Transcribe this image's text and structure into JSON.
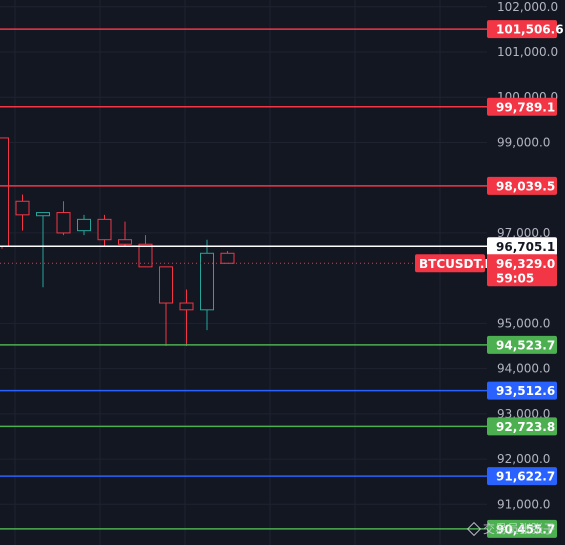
{
  "chart_data": {
    "type": "candlestick",
    "symbol_label": "BTCUSDT.P",
    "countdown": "59:05",
    "last_price": 96329.0,
    "last_price_label": "96,329.0",
    "ylim": [
      90100,
      102150
    ],
    "y_ticks": [
      {
        "v": 102000,
        "label": "102,000.0"
      },
      {
        "v": 101000,
        "label": "101,000.0"
      },
      {
        "v": 100000,
        "label": "100,000.0"
      },
      {
        "v": 99000,
        "label": "99,000.0"
      },
      {
        "v": 97000,
        "label": "97,000.0"
      },
      {
        "v": 95000,
        "label": "95,000.0"
      },
      {
        "v": 94000,
        "label": "94,000.0"
      },
      {
        "v": 93000,
        "label": "93,000.0"
      },
      {
        "v": 92000,
        "label": "92,000.0"
      },
      {
        "v": 91000,
        "label": "91,000.0"
      }
    ],
    "levels": [
      {
        "v": 101506.6,
        "label": "101,506.6",
        "color": "#f23645"
      },
      {
        "v": 99789.1,
        "label": "99,789.1",
        "color": "#f23645"
      },
      {
        "v": 98039.5,
        "label": "98,039.5",
        "color": "#f23645"
      },
      {
        "v": 96705.1,
        "label": "96,705.1",
        "color": "#ffffff"
      },
      {
        "v": 94523.7,
        "label": "94,523.7",
        "color": "#4caf50"
      },
      {
        "v": 93512.6,
        "label": "93,512.6",
        "color": "#2962ff"
      },
      {
        "v": 92723.8,
        "label": "92,723.8",
        "color": "#4caf50"
      },
      {
        "v": 91622.7,
        "label": "91,622.7",
        "color": "#2962ff"
      },
      {
        "v": 90455.7,
        "label": "90,455.7",
        "color": "#4caf50"
      }
    ],
    "candles": [
      {
        "o": 99100,
        "h": 99100,
        "l": 96650,
        "c": 96700
      },
      {
        "o": 97700,
        "h": 97850,
        "l": 97050,
        "c": 97400
      },
      {
        "o": 97380,
        "h": 97450,
        "l": 95800,
        "c": 97450
      },
      {
        "o": 97450,
        "h": 97700,
        "l": 96950,
        "c": 97000
      },
      {
        "o": 97050,
        "h": 97400,
        "l": 96950,
        "c": 97300
      },
      {
        "o": 97300,
        "h": 97400,
        "l": 96700,
        "c": 96850
      },
      {
        "o": 96850,
        "h": 97250,
        "l": 96700,
        "c": 96750
      },
      {
        "o": 96750,
        "h": 96950,
        "l": 96250,
        "c": 96250
      },
      {
        "o": 96250,
        "h": 96250,
        "l": 94500,
        "c": 95450
      },
      {
        "o": 95450,
        "h": 95750,
        "l": 94500,
        "c": 95300
      },
      {
        "o": 95300,
        "h": 96850,
        "l": 94850,
        "c": 96550
      },
      {
        "o": 96550,
        "h": 96600,
        "l": 96329,
        "c": 96329
      }
    ],
    "colors": {
      "up": "#26a69a",
      "down": "#f23645",
      "background": "#131722",
      "grid": "#1f2330"
    },
    "watermark": "交易员张张子"
  }
}
